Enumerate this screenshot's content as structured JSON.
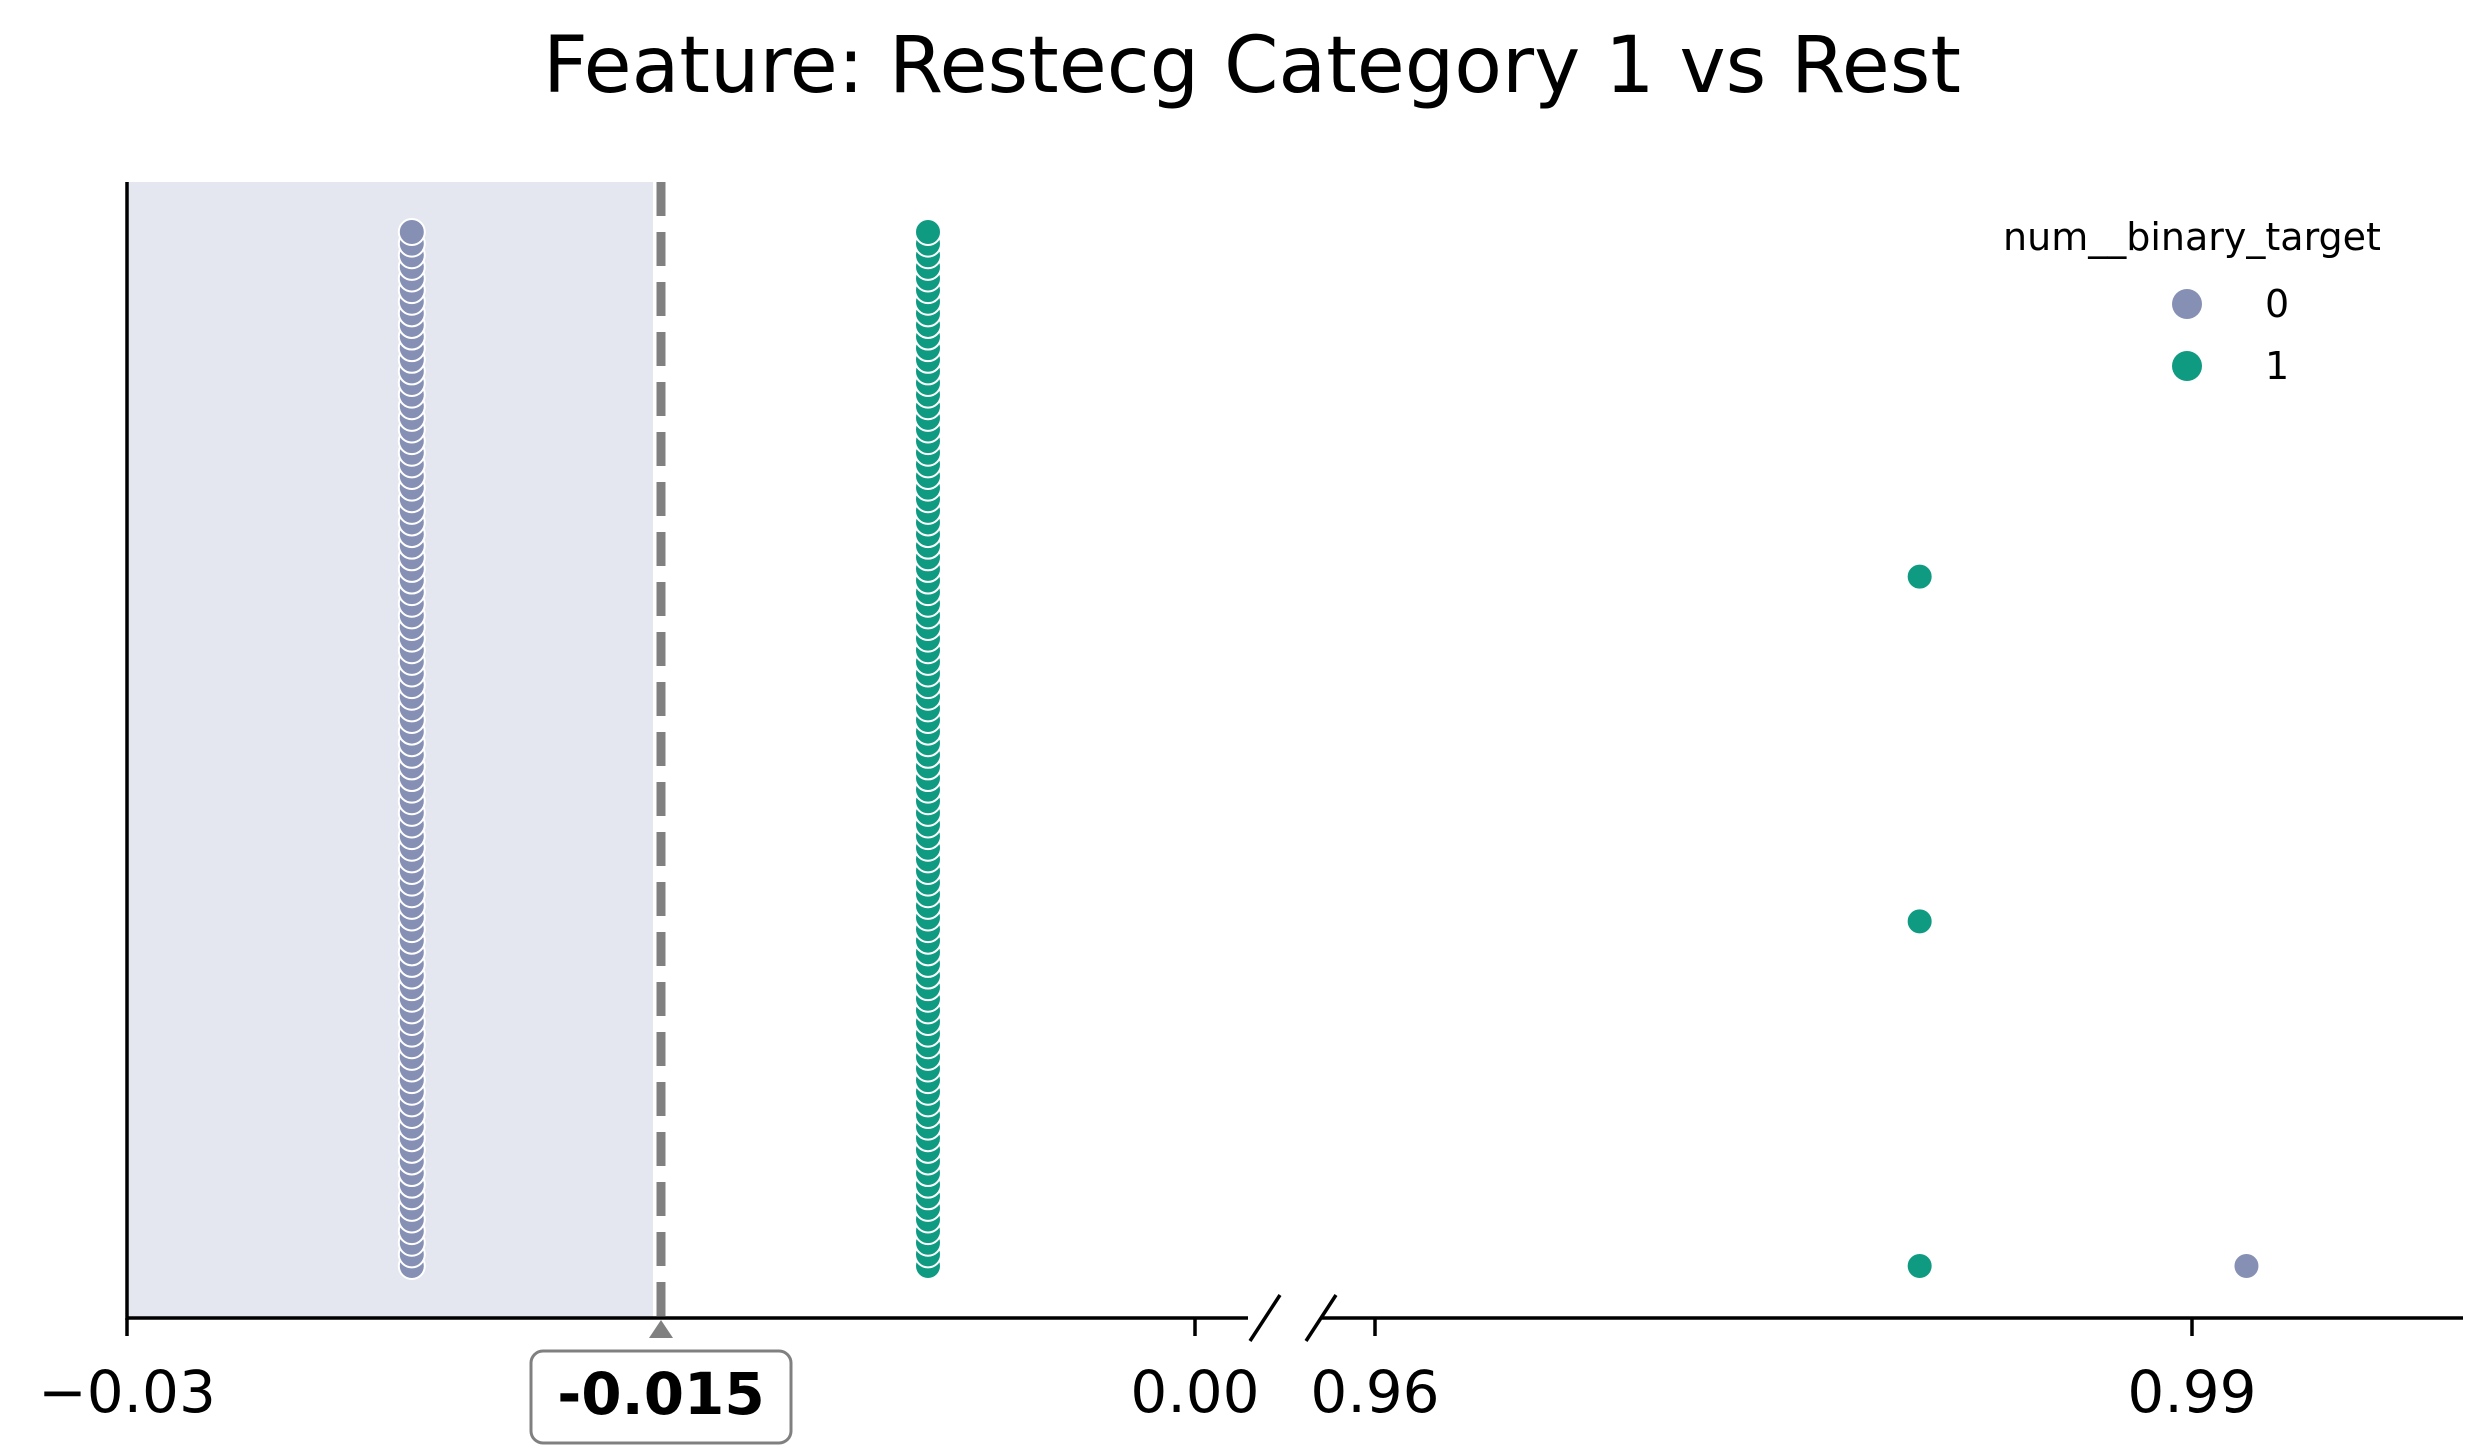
{
  "chart_data": {
    "type": "scatter",
    "title": "Feature: Restecg Category 1 vs Rest",
    "xlabel": "",
    "ylabel": "",
    "broken_x_axis": true,
    "xlim_left": [
      -0.03,
      0.0
    ],
    "xlim_right": [
      0.96,
      0.9925
    ],
    "x_ticks_left": [
      {
        "value": -0.03,
        "label": "−0.03"
      },
      {
        "value": 0.0,
        "label": "0.00"
      }
    ],
    "x_ticks_right": [
      {
        "value": 0.96,
        "label": "0.96"
      },
      {
        "value": 0.99,
        "label": "0.99"
      }
    ],
    "threshold": {
      "value": -0.015,
      "label": "-0.015",
      "line_style": "dashed",
      "shaded_side": "left"
    },
    "legend": {
      "title": "num__binary_target",
      "placement": "top-right",
      "entries": [
        {
          "label": "0",
          "color": "#8690b4"
        },
        {
          "label": "1",
          "color": "#0f9b82"
        }
      ]
    },
    "series": [
      {
        "name": "0",
        "color": "#8690b4",
        "points": [
          {
            "x": -0.022,
            "count": 90
          },
          {
            "x": 0.992,
            "count": 1
          }
        ]
      },
      {
        "name": "1",
        "color": "#0f9b82",
        "points": [
          {
            "x": -0.0075,
            "count": 90
          },
          {
            "x": 0.98,
            "count": 3
          }
        ]
      }
    ],
    "grid": false
  },
  "colors": {
    "shade": "#e4e7ef",
    "threshold_line": "#808080"
  }
}
